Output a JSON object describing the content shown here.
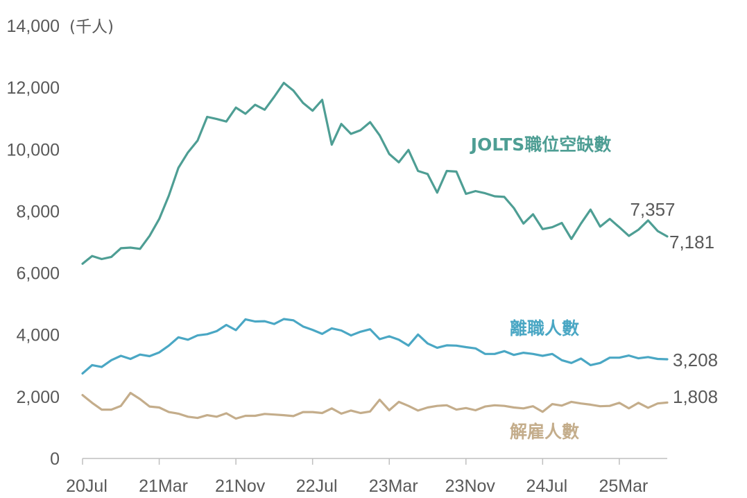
{
  "chart_data": {
    "type": "line",
    "unit_label": "(千人)",
    "ylim": [
      0,
      14000
    ],
    "y_ticks": [
      0,
      2000,
      4000,
      6000,
      8000,
      10000,
      12000,
      14000
    ],
    "y_tick_labels": [
      "0",
      "2,000",
      "4,000",
      "6,000",
      "8,000",
      "10,000",
      "12,000",
      "14,000"
    ],
    "x_tick_labels": [
      "20Jul",
      "21Mar",
      "21Nov",
      "22Jul",
      "23Mar",
      "23Nov",
      "24Jul",
      "25Mar"
    ],
    "x_tick_index": [
      0,
      8,
      16,
      24,
      32,
      40,
      48,
      56
    ],
    "grid": false,
    "series": [
      {
        "name": "JOLTS職位空缺數",
        "color": "#4e9e94",
        "end_labels": [
          "7,357",
          "7,181"
        ],
        "values": [
          6300,
          6550,
          6450,
          6520,
          6800,
          6820,
          6780,
          7200,
          7750,
          8500,
          9400,
          9900,
          10280,
          11050,
          10980,
          10900,
          11350,
          11150,
          11440,
          11280,
          11700,
          12150,
          11900,
          11500,
          11250,
          11600,
          10150,
          10820,
          10500,
          10620,
          10880,
          10450,
          9850,
          9580,
          9980,
          9300,
          9200,
          8600,
          9300,
          9280,
          8560,
          8650,
          8580,
          8480,
          8460,
          8100,
          7600,
          7900,
          7420,
          7480,
          7620,
          7100,
          7600,
          8050,
          7500,
          7750,
          7480,
          7200,
          7400,
          7700,
          7357,
          7181
        ]
      },
      {
        "name": "離職人數",
        "color": "#4aa7c4",
        "end_labels": [
          "3,208"
        ],
        "values": [
          2750,
          3020,
          2960,
          3180,
          3320,
          3220,
          3360,
          3310,
          3430,
          3650,
          3920,
          3840,
          3980,
          4020,
          4120,
          4320,
          4150,
          4500,
          4430,
          4440,
          4350,
          4510,
          4470,
          4270,
          4160,
          4030,
          4210,
          4140,
          3980,
          4100,
          4180,
          3860,
          3950,
          3840,
          3650,
          4010,
          3720,
          3580,
          3660,
          3650,
          3600,
          3560,
          3380,
          3380,
          3470,
          3350,
          3420,
          3380,
          3320,
          3380,
          3180,
          3090,
          3230,
          3020,
          3090,
          3260,
          3260,
          3330,
          3240,
          3280,
          3220,
          3208
        ]
      },
      {
        "name": "解雇人數",
        "color": "#c4ad8b",
        "end_labels": [
          "1,808"
        ],
        "values": [
          2050,
          1800,
          1580,
          1580,
          1700,
          2120,
          1920,
          1680,
          1650,
          1500,
          1450,
          1350,
          1310,
          1400,
          1350,
          1460,
          1290,
          1380,
          1380,
          1440,
          1420,
          1400,
          1370,
          1500,
          1500,
          1470,
          1620,
          1450,
          1550,
          1470,
          1520,
          1900,
          1560,
          1830,
          1700,
          1550,
          1650,
          1700,
          1720,
          1580,
          1630,
          1560,
          1680,
          1720,
          1700,
          1650,
          1620,
          1690,
          1510,
          1760,
          1710,
          1830,
          1780,
          1740,
          1690,
          1700,
          1800,
          1620,
          1800,
          1640,
          1780,
          1808
        ]
      }
    ]
  }
}
